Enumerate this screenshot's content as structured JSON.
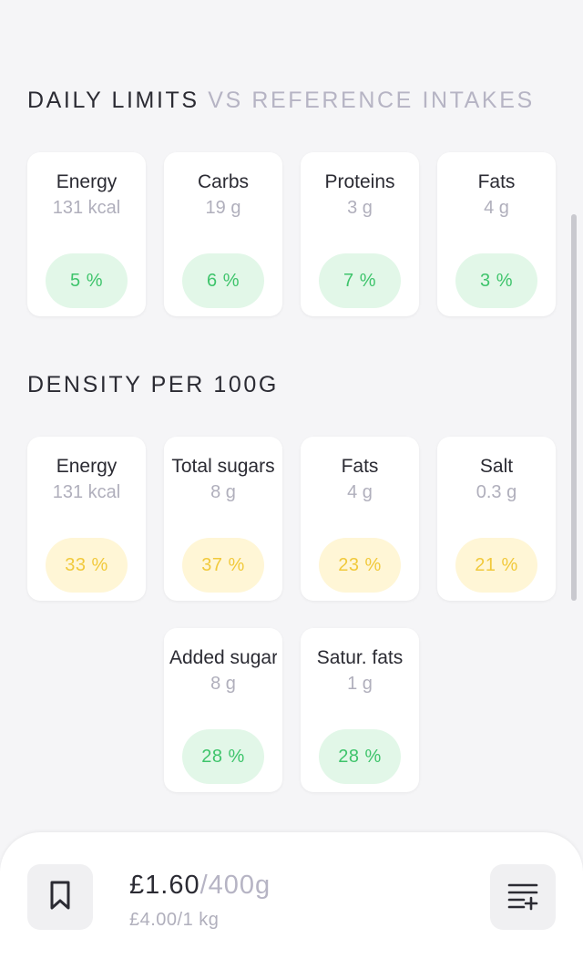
{
  "daily_limits": {
    "title": "DAILY LIMITS",
    "subtitle": "VS REFERENCE INTAKES",
    "cards": [
      {
        "name": "Energy",
        "amount": "131 kcal",
        "percent": "5 %",
        "tone": "green"
      },
      {
        "name": "Carbs",
        "amount": "19 g",
        "percent": "6 %",
        "tone": "green"
      },
      {
        "name": "Proteins",
        "amount": "3 g",
        "percent": "7 %",
        "tone": "green"
      },
      {
        "name": "Fats",
        "amount": "4 g",
        "percent": "3 %",
        "tone": "green"
      }
    ]
  },
  "density": {
    "title": "DENSITY PER 100G",
    "cards": [
      {
        "name": "Energy",
        "amount": "131 kcal",
        "percent": "33 %",
        "tone": "yellow"
      },
      {
        "name": "Total sugars",
        "amount": "8 g",
        "percent": "37 %",
        "tone": "yellow"
      },
      {
        "name": "Fats",
        "amount": "4 g",
        "percent": "23 %",
        "tone": "yellow"
      },
      {
        "name": "Salt",
        "amount": "0.3 g",
        "percent": "21 %",
        "tone": "yellow"
      },
      {
        "name": "Added sugars",
        "amount": "8 g",
        "percent": "28 %",
        "tone": "green"
      },
      {
        "name": "Satur. fats",
        "amount": "1 g",
        "percent": "28 %",
        "tone": "green"
      }
    ]
  },
  "bottom_bar": {
    "price": "£1.60",
    "unit": "/400g",
    "price_per_unit": "£4.00/1 kg",
    "bookmark_icon": "bookmark-icon",
    "add_list_icon": "playlist-add-icon"
  },
  "colors": {
    "green_bg": "#e2f7e8",
    "green_text": "#3ec46b",
    "yellow_bg": "#fff6d6",
    "yellow_text": "#f1c93b"
  }
}
